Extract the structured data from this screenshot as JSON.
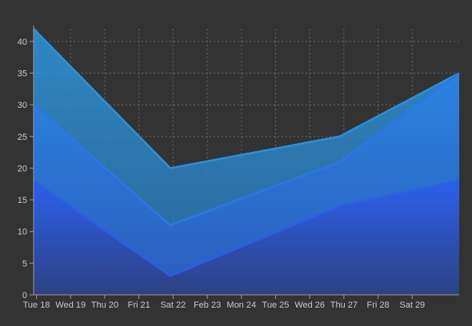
{
  "chart_data": {
    "type": "area",
    "title": "",
    "xlabel": "",
    "ylabel": "",
    "x_tick_labels": [
      "Tue 18",
      "Wed 19",
      "Thu 20",
      "Fri 21",
      "Sat 22",
      "Feb 23",
      "Mon 24",
      "Tue 25",
      "Wed 26",
      "Thu 27",
      "Fri 28",
      "Sat 29"
    ],
    "x_dates": [
      "2020-02-18",
      "2020-02-19",
      "2020-02-20",
      "2020-02-21",
      "2020-02-22",
      "2020-02-23",
      "2020-02-24",
      "2020-02-25",
      "2020-02-26",
      "2020-02-27",
      "2020-02-28",
      "2020-02-29"
    ],
    "x_range": [
      "2020-02-17T22:00",
      "2020-03-01T09:00"
    ],
    "ylim": [
      0,
      42
    ],
    "y_ticks": [
      0,
      5,
      10,
      15,
      20,
      25,
      30,
      35,
      40
    ],
    "grid": true,
    "legend": "none",
    "series": [
      {
        "x": [
          "2020-02-17T22:00",
          "2020-02-21T22:00",
          "2020-02-26T21:00",
          "2020-03-01T09:00"
        ],
        "values": [
          42,
          20,
          25,
          35
        ],
        "color": "#2d8fd8"
      },
      {
        "x": [
          "2020-02-17T22:00",
          "2020-02-21T22:00",
          "2020-02-26T21:00",
          "2020-03-01T09:00"
        ],
        "values": [
          30,
          11,
          21,
          35
        ],
        "color": "#2b78e4"
      },
      {
        "x": [
          "2020-02-17T22:00",
          "2020-02-21T22:00",
          "2020-02-26T21:00",
          "2020-03-01T09:00"
        ],
        "values": [
          18,
          3,
          14,
          18
        ],
        "color": "#2c5ee6"
      }
    ]
  }
}
